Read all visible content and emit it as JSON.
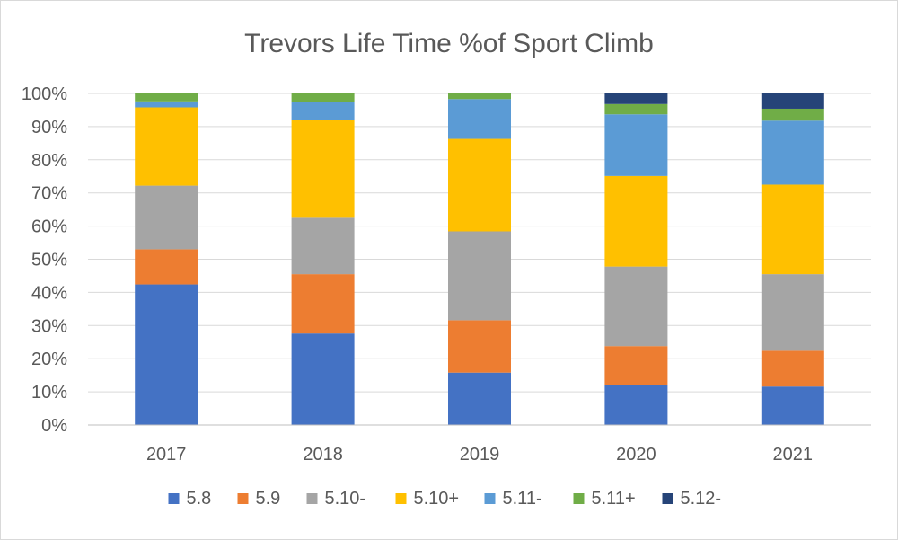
{
  "chart_data": {
    "type": "bar",
    "stacked": "percent",
    "title": "Trevors Life Time %of Sport Climb",
    "xlabel": "",
    "ylabel": "",
    "categories": [
      "2017",
      "2018",
      "2019",
      "2020",
      "2021"
    ],
    "ylim": [
      0,
      100
    ],
    "y_ticks": [
      0,
      10,
      20,
      30,
      40,
      50,
      60,
      70,
      80,
      90,
      100
    ],
    "y_tick_labels": [
      "0%",
      "10%",
      "20%",
      "30%",
      "40%",
      "50%",
      "60%",
      "70%",
      "80%",
      "90%",
      "100%"
    ],
    "grid": true,
    "legend_position": "bottom",
    "series": [
      {
        "name": "5.8",
        "color": "#4472C4",
        "values": [
          42.4,
          27.6,
          15.8,
          12.0,
          11.6
        ]
      },
      {
        "name": "5.9",
        "color": "#ED7D31",
        "values": [
          10.6,
          17.9,
          15.8,
          11.8,
          10.8
        ]
      },
      {
        "name": "5.10-",
        "color": "#A5A5A5",
        "values": [
          19.2,
          17.0,
          26.8,
          24.0,
          23.1
        ]
      },
      {
        "name": "5.10+",
        "color": "#FFC000",
        "values": [
          23.6,
          29.5,
          27.9,
          27.3,
          27.0
        ]
      },
      {
        "name": "5.11-",
        "color": "#5B9BD5",
        "values": [
          1.8,
          5.3,
          12.0,
          18.6,
          19.3
        ]
      },
      {
        "name": "5.11+",
        "color": "#70AD47",
        "values": [
          2.4,
          2.7,
          1.7,
          3.1,
          3.6
        ]
      },
      {
        "name": "5.12-",
        "color": "#264478",
        "values": [
          0,
          0,
          0,
          3.2,
          4.6
        ]
      }
    ]
  }
}
